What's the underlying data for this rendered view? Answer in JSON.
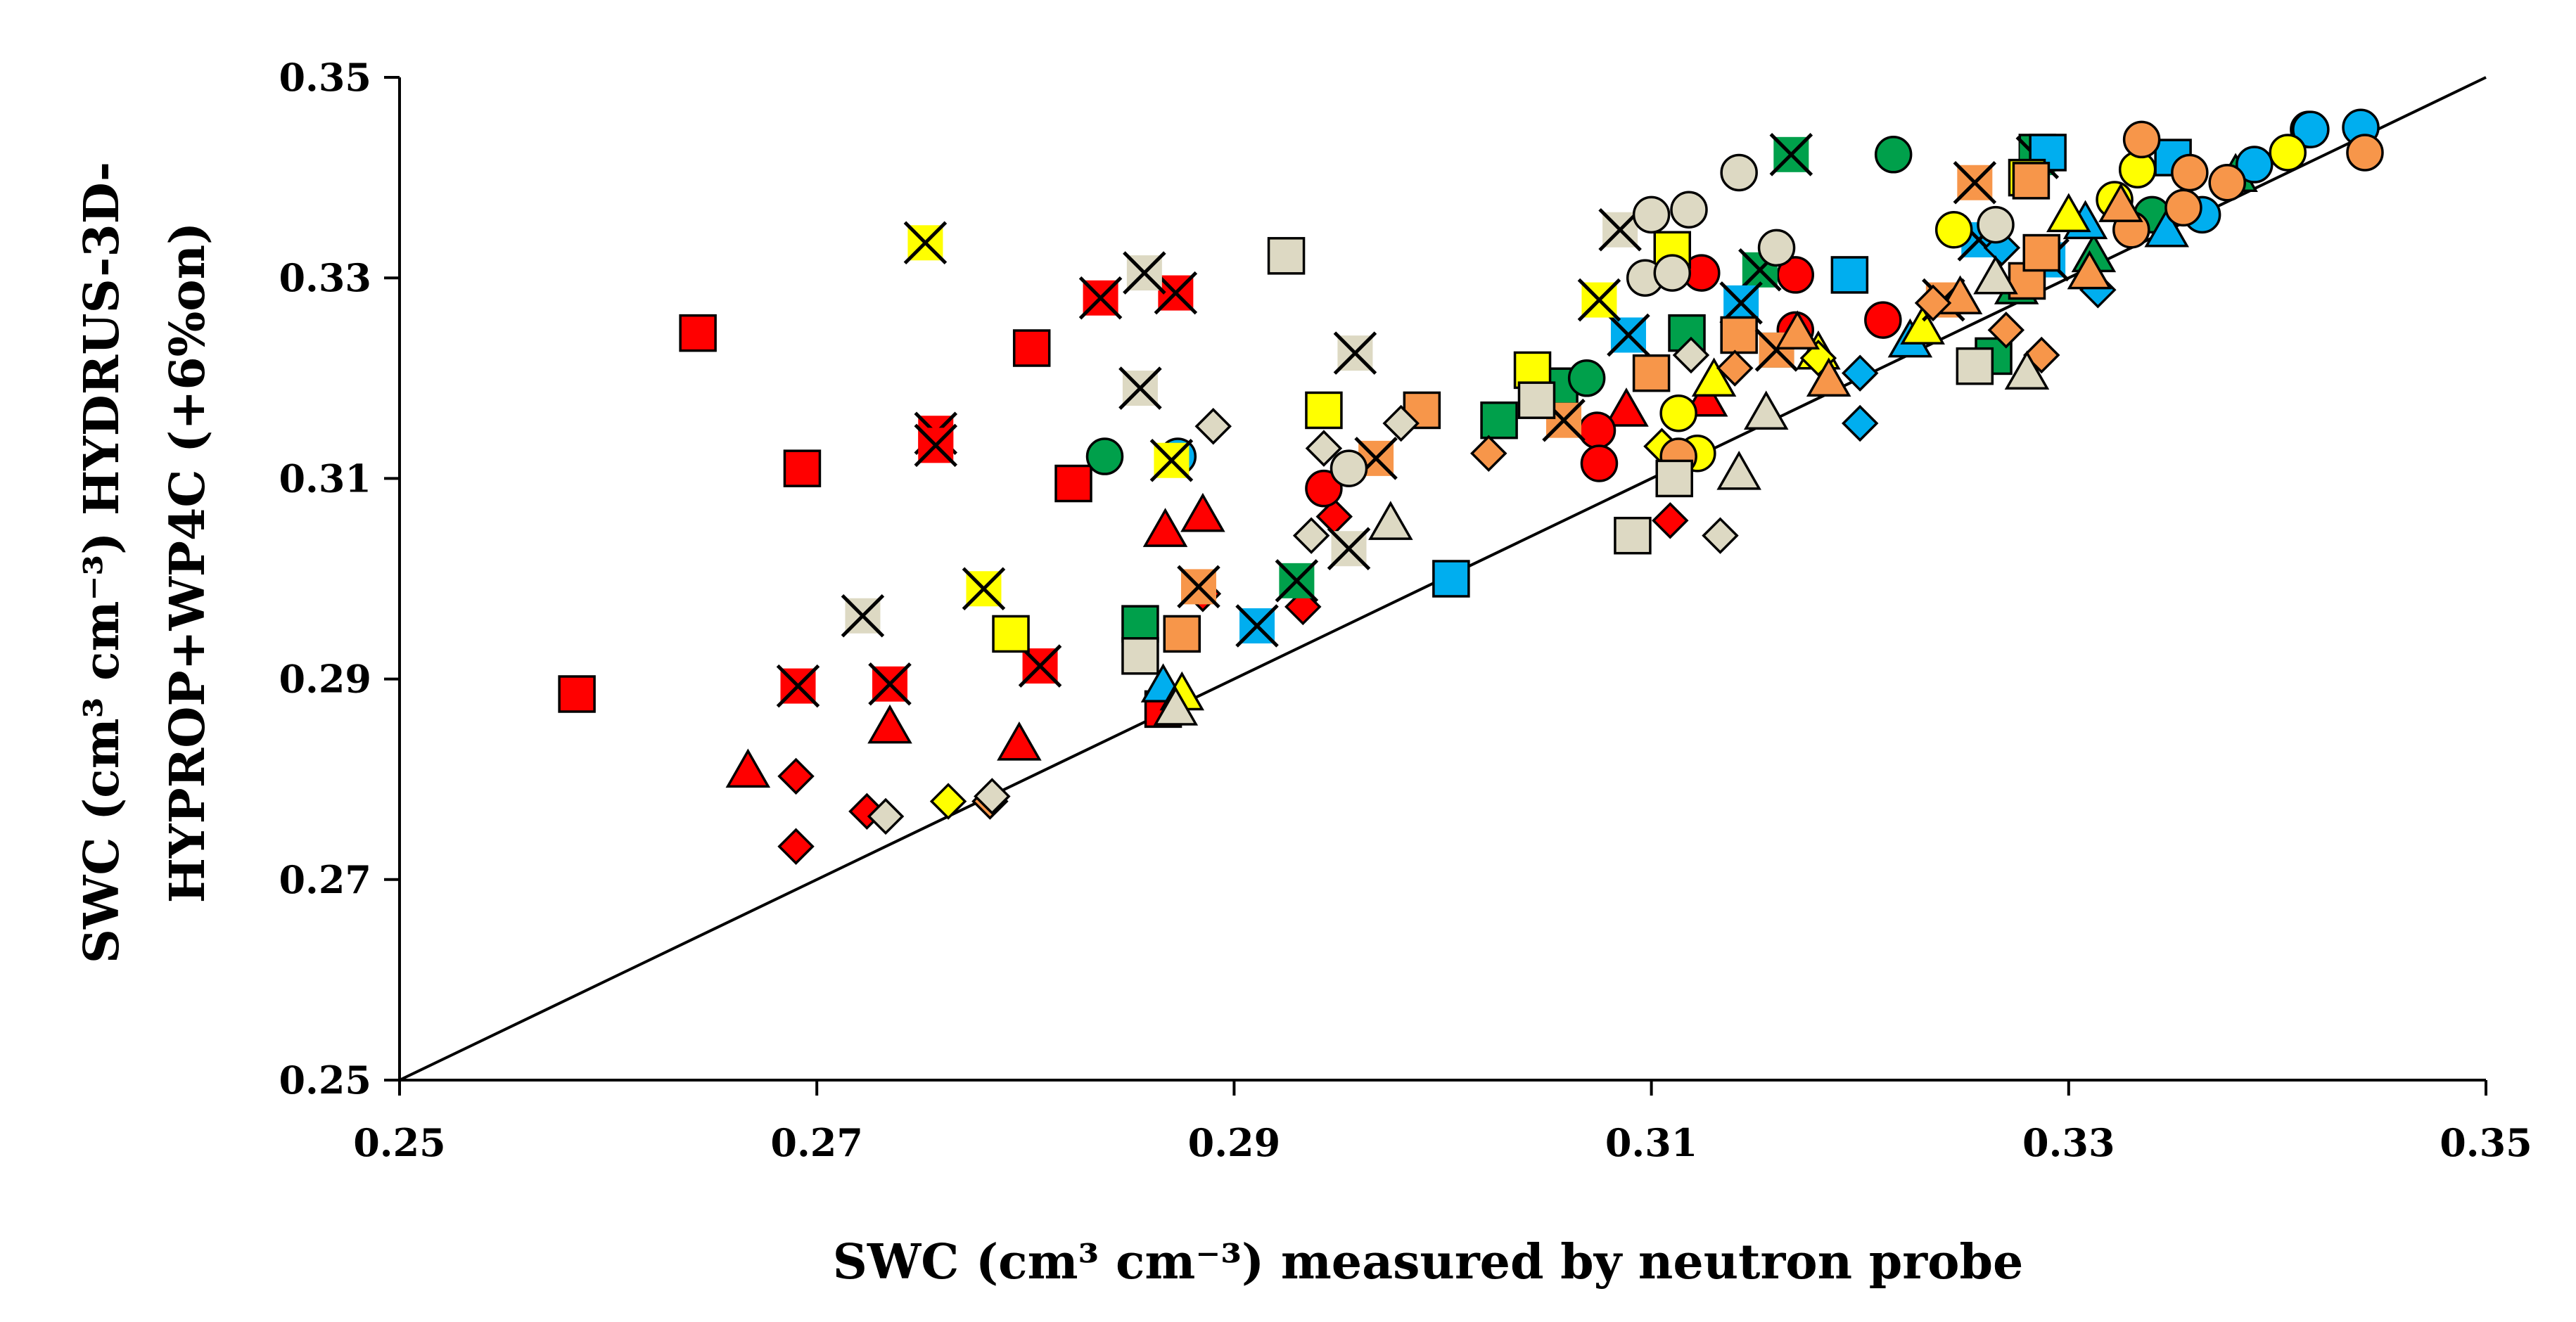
{
  "chart_data": {
    "type": "scatter",
    "title": "",
    "xlabel": "SWC (cm³ cm⁻³) measured by neutron probe",
    "ylabel_line1": "SWC (cm³ cm⁻³) HYDRUS-3D-",
    "ylabel_line2": "HYPROP+WP4C (+6%on)",
    "xlim": [
      0.25,
      0.35
    ],
    "ylim": [
      0.25,
      0.35
    ],
    "x_ticks": [
      "0.25",
      "0.27",
      "0.29",
      "0.31",
      "0.33",
      "0.35"
    ],
    "y_ticks": [
      "0.25",
      "0.27",
      "0.29",
      "0.31",
      "0.33",
      "0.35"
    ],
    "reference_line": {
      "label": "1:1 line",
      "from": [
        0.25,
        0.25
      ],
      "to": [
        0.35,
        0.35
      ]
    },
    "grid": false,
    "legend": "none",
    "colors": {
      "red": "#ff0000",
      "green": "#00a04b",
      "blue": "#00aeef",
      "yellow": "#ffff00",
      "orange": "#f7964a",
      "beige": "#ddd9c3",
      "black": "#000000"
    },
    "series": [
      {
        "name": "red-squares",
        "color": "red",
        "marker": "square",
        "points": [
          [
            0.2585,
            0.2885
          ],
          [
            0.2643,
            0.3245
          ],
          [
            0.2693,
            0.311
          ],
          [
            0.2803,
            0.323
          ],
          [
            0.2823,
            0.3095
          ],
          [
            0.2866,
            0.287
          ]
        ]
      },
      {
        "name": "red-x-squares",
        "color": "red",
        "marker": "xsquare",
        "points": [
          [
            0.2691,
            0.2893
          ],
          [
            0.2735,
            0.2895
          ],
          [
            0.2757,
            0.3145
          ],
          [
            0.2757,
            0.3133
          ],
          [
            0.2807,
            0.2913
          ],
          [
            0.2836,
            0.328
          ],
          [
            0.2872,
            0.3285
          ]
        ]
      },
      {
        "name": "red-triangles",
        "color": "red",
        "marker": "triangle",
        "points": [
          [
            0.2667,
            0.2808
          ],
          [
            0.2735,
            0.2852
          ],
          [
            0.2797,
            0.2835
          ],
          [
            0.2867,
            0.3048
          ],
          [
            0.2885,
            0.3063
          ],
          [
            0.3088,
            0.3168
          ],
          [
            0.3126,
            0.3178
          ]
        ]
      },
      {
        "name": "red-diamonds",
        "color": "red",
        "marker": "diamond",
        "points": [
          [
            0.269,
            0.2733
          ],
          [
            0.269,
            0.2803
          ],
          [
            0.2724,
            0.2768
          ],
          [
            0.2885,
            0.2985
          ],
          [
            0.2933,
            0.2972
          ],
          [
            0.2948,
            0.3062
          ],
          [
            0.3109,
            0.3058
          ]
        ]
      },
      {
        "name": "red-circles",
        "color": "red",
        "marker": "circle",
        "points": [
          [
            0.2943,
            0.309
          ],
          [
            0.3074,
            0.3148
          ],
          [
            0.3075,
            0.3115
          ],
          [
            0.3124,
            0.3305
          ],
          [
            0.3169,
            0.3303
          ],
          [
            0.3169,
            0.3248
          ],
          [
            0.3211,
            0.3258
          ]
        ]
      },
      {
        "name": "green-squares",
        "color": "green",
        "marker": "square",
        "points": [
          [
            0.2855,
            0.2955
          ],
          [
            0.3027,
            0.3158
          ],
          [
            0.3056,
            0.3192
          ],
          [
            0.3117,
            0.3245
          ],
          [
            0.3264,
            0.3222
          ],
          [
            0.3285,
            0.3425
          ]
        ]
      },
      {
        "name": "green-x-squares",
        "color": "green",
        "marker": "xsquare",
        "points": [
          [
            0.293,
            0.2998
          ],
          [
            0.3152,
            0.3308
          ],
          [
            0.3167,
            0.3423
          ],
          [
            0.3285,
            0.342
          ]
        ]
      },
      {
        "name": "green-circles",
        "color": "green",
        "marker": "circle",
        "points": [
          [
            0.2838,
            0.3122
          ],
          [
            0.3069,
            0.32
          ],
          [
            0.3216,
            0.3423
          ],
          [
            0.334,
            0.3363
          ],
          [
            0.3415,
            0.3448
          ]
        ]
      },
      {
        "name": "green-triangles",
        "color": "green",
        "marker": "triangle",
        "points": [
          [
            0.3275,
            0.329
          ],
          [
            0.3312,
            0.3322
          ],
          [
            0.338,
            0.3402
          ]
        ]
      },
      {
        "name": "blue-squares",
        "color": "blue",
        "marker": "square",
        "points": [
          [
            0.3004,
            0.3
          ],
          [
            0.3195,
            0.3303
          ],
          [
            0.329,
            0.3425
          ],
          [
            0.335,
            0.342
          ]
        ]
      },
      {
        "name": "blue-x-squares",
        "color": "blue",
        "marker": "xsquare",
        "points": [
          [
            0.2911,
            0.2953
          ],
          [
            0.3089,
            0.3243
          ],
          [
            0.3143,
            0.3275
          ],
          [
            0.316,
            0.3228
          ],
          [
            0.3257,
            0.3338
          ],
          [
            0.329,
            0.3318
          ]
        ]
      },
      {
        "name": "blue-circles",
        "color": "blue",
        "marker": "circle",
        "points": [
          [
            0.2873,
            0.3122
          ],
          [
            0.3364,
            0.3363
          ],
          [
            0.3389,
            0.3413
          ],
          [
            0.3416,
            0.3448
          ],
          [
            0.344,
            0.345
          ]
        ]
      },
      {
        "name": "blue-triangles",
        "color": "blue",
        "marker": "triangle",
        "points": [
          [
            0.2866,
            0.2893
          ],
          [
            0.3224,
            0.3237
          ],
          [
            0.3308,
            0.3355
          ],
          [
            0.3347,
            0.3347
          ]
        ]
      },
      {
        "name": "blue-diamonds",
        "color": "blue",
        "marker": "diamond",
        "points": [
          [
            0.32,
            0.3155
          ],
          [
            0.32,
            0.3205
          ],
          [
            0.3268,
            0.333
          ],
          [
            0.3314,
            0.3288
          ]
        ]
      },
      {
        "name": "yellow-squares",
        "color": "yellow",
        "marker": "square",
        "points": [
          [
            0.2793,
            0.2945
          ],
          [
            0.2943,
            0.3168
          ],
          [
            0.3043,
            0.3208
          ],
          [
            0.311,
            0.3328
          ],
          [
            0.328,
            0.34
          ]
        ]
      },
      {
        "name": "yellow-x-squares",
        "color": "yellow",
        "marker": "xsquare",
        "points": [
          [
            0.2752,
            0.3335
          ],
          [
            0.278,
            0.299
          ],
          [
            0.287,
            0.3118
          ],
          [
            0.3075,
            0.3278
          ]
        ]
      },
      {
        "name": "yellow-circles",
        "color": "yellow",
        "marker": "circle",
        "points": [
          [
            0.3113,
            0.3165
          ],
          [
            0.3122,
            0.3125
          ],
          [
            0.3245,
            0.3348
          ],
          [
            0.3322,
            0.3378
          ],
          [
            0.3333,
            0.3408
          ],
          [
            0.3405,
            0.3425
          ]
        ]
      },
      {
        "name": "yellow-triangles",
        "color": "yellow",
        "marker": "triangle",
        "points": [
          [
            0.2875,
            0.2885
          ],
          [
            0.313,
            0.3198
          ],
          [
            0.318,
            0.3225
          ],
          [
            0.323,
            0.325
          ],
          [
            0.33,
            0.3362
          ]
        ]
      },
      {
        "name": "yellow-diamonds",
        "color": "yellow",
        "marker": "diamond",
        "points": [
          [
            0.2763,
            0.2778
          ],
          [
            0.3105,
            0.3132
          ],
          [
            0.318,
            0.322
          ]
        ]
      },
      {
        "name": "orange-squares",
        "color": "orange",
        "marker": "square",
        "points": [
          [
            0.2875,
            0.2945
          ],
          [
            0.299,
            0.3168
          ],
          [
            0.31,
            0.3205
          ],
          [
            0.3142,
            0.3243
          ],
          [
            0.328,
            0.3297
          ],
          [
            0.3287,
            0.3325
          ],
          [
            0.3282,
            0.3397
          ]
        ]
      },
      {
        "name": "orange-x-squares",
        "color": "orange",
        "marker": "xsquare",
        "points": [
          [
            0.2883,
            0.2992
          ],
          [
            0.2968,
            0.312
          ],
          [
            0.3058,
            0.3158
          ],
          [
            0.316,
            0.3228
          ],
          [
            0.324,
            0.3278
          ],
          [
            0.3255,
            0.3395
          ]
        ]
      },
      {
        "name": "orange-circles",
        "color": "orange",
        "marker": "circle",
        "points": [
          [
            0.3113,
            0.3122
          ],
          [
            0.333,
            0.3348
          ],
          [
            0.3335,
            0.3438
          ],
          [
            0.3355,
            0.337
          ],
          [
            0.3358,
            0.3405
          ],
          [
            0.3376,
            0.3395
          ],
          [
            0.3442,
            0.3425
          ]
        ]
      },
      {
        "name": "orange-triangles",
        "color": "orange",
        "marker": "triangle",
        "points": [
          [
            0.317,
            0.3245
          ],
          [
            0.3185,
            0.3198
          ],
          [
            0.3248,
            0.328
          ],
          [
            0.331,
            0.3305
          ],
          [
            0.3325,
            0.3372
          ]
        ]
      },
      {
        "name": "orange-diamonds",
        "color": "orange",
        "marker": "diamond",
        "points": [
          [
            0.2783,
            0.2778
          ],
          [
            0.3022,
            0.3125
          ],
          [
            0.314,
            0.321
          ],
          [
            0.3235,
            0.3275
          ],
          [
            0.327,
            0.3248
          ],
          [
            0.3287,
            0.3223
          ]
        ]
      },
      {
        "name": "beige-squares",
        "color": "beige",
        "marker": "square",
        "points": [
          [
            0.2855,
            0.2923
          ],
          [
            0.2925,
            0.3322
          ],
          [
            0.3045,
            0.3178
          ],
          [
            0.3091,
            0.3043
          ],
          [
            0.3111,
            0.31
          ],
          [
            0.3255,
            0.3212
          ]
        ]
      },
      {
        "name": "beige-x-squares",
        "color": "beige",
        "marker": "xsquare",
        "points": [
          [
            0.2722,
            0.2963
          ],
          [
            0.2855,
            0.319
          ],
          [
            0.2857,
            0.3305
          ],
          [
            0.2955,
            0.303
          ],
          [
            0.2958,
            0.3225
          ],
          [
            0.3085,
            0.3348
          ]
        ]
      },
      {
        "name": "beige-circles",
        "color": "beige",
        "marker": "circle",
        "points": [
          [
            0.2955,
            0.311
          ],
          [
            0.3097,
            0.33
          ],
          [
            0.31,
            0.3363
          ],
          [
            0.311,
            0.3305
          ],
          [
            0.3118,
            0.3368
          ],
          [
            0.3142,
            0.3405
          ],
          [
            0.316,
            0.333
          ],
          [
            0.3265,
            0.3353
          ]
        ]
      },
      {
        "name": "beige-triangles",
        "color": "beige",
        "marker": "triangle",
        "points": [
          [
            0.2872,
            0.287
          ],
          [
            0.2975,
            0.3055
          ],
          [
            0.3142,
            0.3105
          ],
          [
            0.3155,
            0.3165
          ],
          [
            0.328,
            0.3205
          ],
          [
            0.3265,
            0.33
          ]
        ]
      },
      {
        "name": "beige-diamonds",
        "color": "beige",
        "marker": "diamond",
        "points": [
          [
            0.2733,
            0.2763
          ],
          [
            0.2784,
            0.2783
          ],
          [
            0.289,
            0.3152
          ],
          [
            0.2937,
            0.3043
          ],
          [
            0.2943,
            0.313
          ],
          [
            0.298,
            0.3155
          ],
          [
            0.3119,
            0.3223
          ],
          [
            0.3133,
            0.3043
          ]
        ]
      }
    ]
  }
}
